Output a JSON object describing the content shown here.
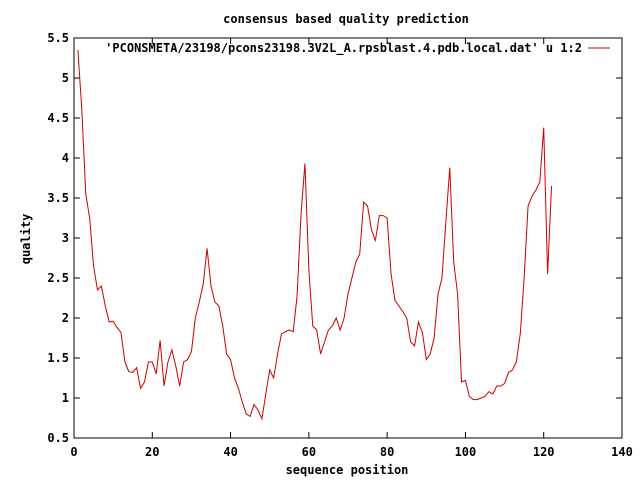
{
  "chart_data": {
    "type": "line",
    "title": "consensus based quality prediction",
    "xlabel": "sequence position",
    "ylabel": "quality",
    "xlim": [
      0,
      140
    ],
    "ylim": [
      0.5,
      5.5
    ],
    "x_ticks": [
      0,
      20,
      40,
      60,
      80,
      100,
      120,
      140
    ],
    "y_ticks": [
      0.5,
      1,
      1.5,
      2,
      2.5,
      3,
      3.5,
      4,
      4.5,
      5,
      5.5
    ],
    "x_tick_labels": [
      "0",
      "20",
      "40",
      "60",
      "80",
      "100",
      "120",
      "140"
    ],
    "y_tick_labels": [
      "0.5",
      "1",
      "1.5",
      "2",
      "2.5",
      "3",
      "3.5",
      "4",
      "4.5",
      "5",
      "5.5"
    ],
    "grid": false,
    "legend_position": "top-right",
    "series": [
      {
        "name": "'PCONSMETA/23198/pcons23198.3V2L_A.rpsblast.4.pdb.local.dat' u 1:2",
        "color": "#cc0000",
        "x": [
          1,
          2,
          3,
          4,
          5,
          6,
          7,
          8,
          9,
          10,
          11,
          12,
          13,
          14,
          15,
          16,
          17,
          18,
          19,
          20,
          21,
          22,
          23,
          24,
          25,
          26,
          27,
          28,
          29,
          30,
          31,
          32,
          33,
          34,
          35,
          36,
          37,
          38,
          39,
          40,
          41,
          42,
          43,
          44,
          45,
          46,
          47,
          48,
          49,
          50,
          51,
          52,
          53,
          54,
          55,
          56,
          57,
          58,
          59,
          60,
          61,
          62,
          63,
          64,
          65,
          66,
          67,
          68,
          69,
          70,
          71,
          72,
          73,
          74,
          75,
          76,
          77,
          78,
          79,
          80,
          81,
          82,
          83,
          84,
          85,
          86,
          87,
          88,
          89,
          90,
          91,
          92,
          93,
          94,
          95,
          96,
          97,
          98,
          99,
          100,
          101,
          102,
          103,
          104,
          105,
          106,
          107,
          108,
          109,
          110,
          111,
          112,
          113,
          114,
          115,
          116,
          117,
          118,
          119,
          120,
          121,
          122
        ],
        "values": [
          5.35,
          4.6,
          3.55,
          3.25,
          2.65,
          2.35,
          2.4,
          2.15,
          1.95,
          1.96,
          1.88,
          1.82,
          1.45,
          1.33,
          1.32,
          1.38,
          1.12,
          1.2,
          1.45,
          1.45,
          1.3,
          1.72,
          1.15,
          1.45,
          1.6,
          1.4,
          1.15,
          1.45,
          1.48,
          1.58,
          2.0,
          2.2,
          2.42,
          2.87,
          2.4,
          2.2,
          2.15,
          1.9,
          1.55,
          1.48,
          1.25,
          1.12,
          0.95,
          0.8,
          0.77,
          0.92,
          0.85,
          0.74,
          1.05,
          1.35,
          1.25,
          1.55,
          1.8,
          1.83,
          1.85,
          1.83,
          2.28,
          3.3,
          3.93,
          2.6,
          1.9,
          1.85,
          1.55,
          1.7,
          1.85,
          1.9,
          2.0,
          1.85,
          2.0,
          2.3,
          2.5,
          2.7,
          2.8,
          3.45,
          3.4,
          3.1,
          2.97,
          3.28,
          3.28,
          3.25,
          2.55,
          2.22,
          2.15,
          2.08,
          2.0,
          1.7,
          1.65,
          1.95,
          1.82,
          1.48,
          1.55,
          1.75,
          2.3,
          2.5,
          3.2,
          3.88,
          2.7,
          2.3,
          1.2,
          1.22,
          1.02,
          0.98,
          0.98,
          1.0,
          1.02,
          1.08,
          1.05,
          1.15,
          1.15,
          1.18,
          1.32,
          1.35,
          1.45,
          1.8,
          2.5,
          3.4,
          3.52,
          3.6,
          3.7,
          4.38,
          2.55,
          3.65
        ]
      }
    ]
  }
}
